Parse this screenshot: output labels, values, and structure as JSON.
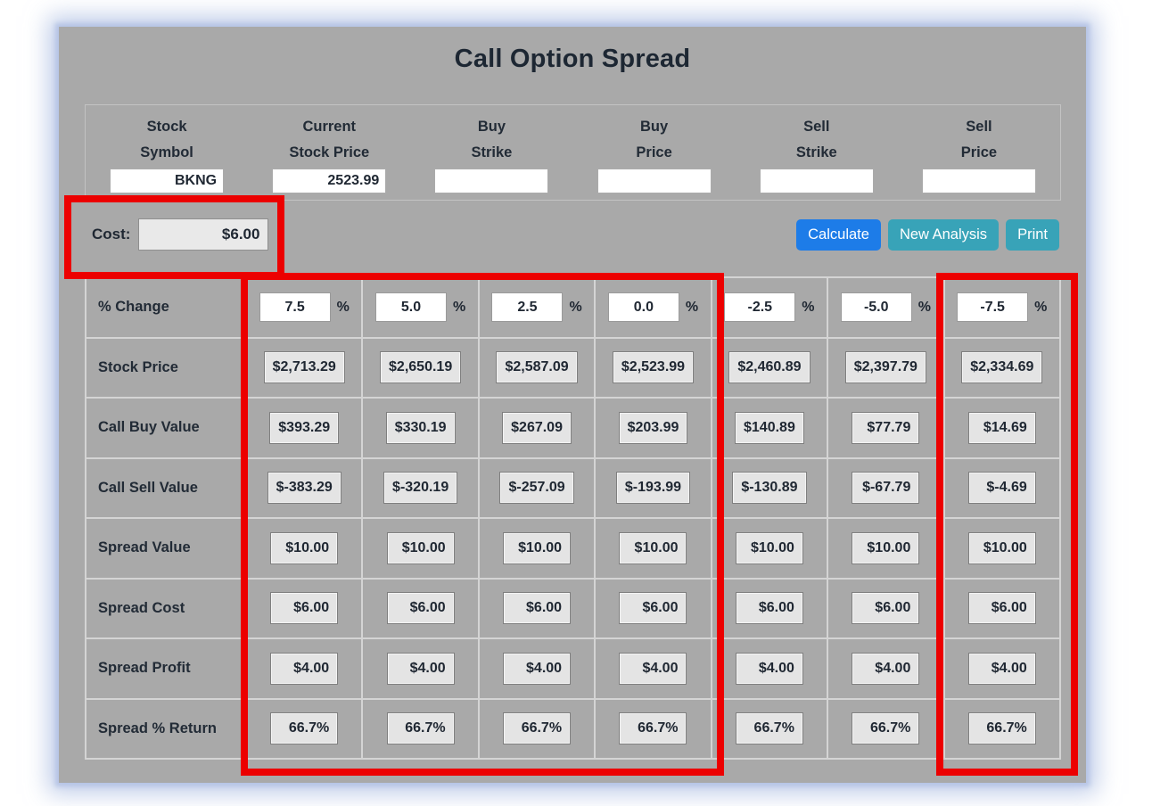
{
  "title": "Call Option Spread",
  "colors": {
    "panel_gray": "#a9a9a9",
    "calculate_blue": "#1d7ce8",
    "teal_button": "#38a3b8",
    "annotation_red": "#ec0000",
    "field_gray": "#e4e4e4"
  },
  "inputs": {
    "fields": [
      {
        "label1": "Stock",
        "label2": "Symbol",
        "value": "BKNG"
      },
      {
        "label1": "Current",
        "label2": "Stock Price",
        "value": "2523.99"
      },
      {
        "label1": "Buy",
        "label2": "Strike",
        "value": ""
      },
      {
        "label1": "Buy",
        "label2": "Price",
        "value": ""
      },
      {
        "label1": "Sell",
        "label2": "Strike",
        "value": ""
      },
      {
        "label1": "Sell",
        "label2": "Price",
        "value": ""
      }
    ]
  },
  "cost": {
    "label": "Cost:",
    "value": "$6.00"
  },
  "buttons": {
    "calculate": "Calculate",
    "new_analysis": "New Analysis",
    "print": "Print"
  },
  "table": {
    "percent_suffix": "%",
    "rows": [
      {
        "label": "% Change",
        "values": [
          "7.5",
          "5.0",
          "2.5",
          "0.0",
          "-2.5",
          "-5.0",
          "-7.5"
        ]
      },
      {
        "label": "Stock Price",
        "values": [
          "$2,713.29",
          "$2,650.19",
          "$2,587.09",
          "$2,523.99",
          "$2,460.89",
          "$2,397.79",
          "$2,334.69"
        ]
      },
      {
        "label": "Call Buy Value",
        "values": [
          "$393.29",
          "$330.19",
          "$267.09",
          "$203.99",
          "$140.89",
          "$77.79",
          "$14.69"
        ]
      },
      {
        "label": "Call Sell Value",
        "values": [
          "$-383.29",
          "$-320.19",
          "$-257.09",
          "$-193.99",
          "$-130.89",
          "$-67.79",
          "$-4.69"
        ]
      },
      {
        "label": "Spread Value",
        "values": [
          "$10.00",
          "$10.00",
          "$10.00",
          "$10.00",
          "$10.00",
          "$10.00",
          "$10.00"
        ]
      },
      {
        "label": "Spread Cost",
        "values": [
          "$6.00",
          "$6.00",
          "$6.00",
          "$6.00",
          "$6.00",
          "$6.00",
          "$6.00"
        ]
      },
      {
        "label": "Spread Profit",
        "values": [
          "$4.00",
          "$4.00",
          "$4.00",
          "$4.00",
          "$4.00",
          "$4.00",
          "$4.00"
        ]
      },
      {
        "label": "Spread % Return",
        "values": [
          "66.7%",
          "66.7%",
          "66.7%",
          "66.7%",
          "66.7%",
          "66.7%",
          "66.7%"
        ]
      }
    ]
  }
}
